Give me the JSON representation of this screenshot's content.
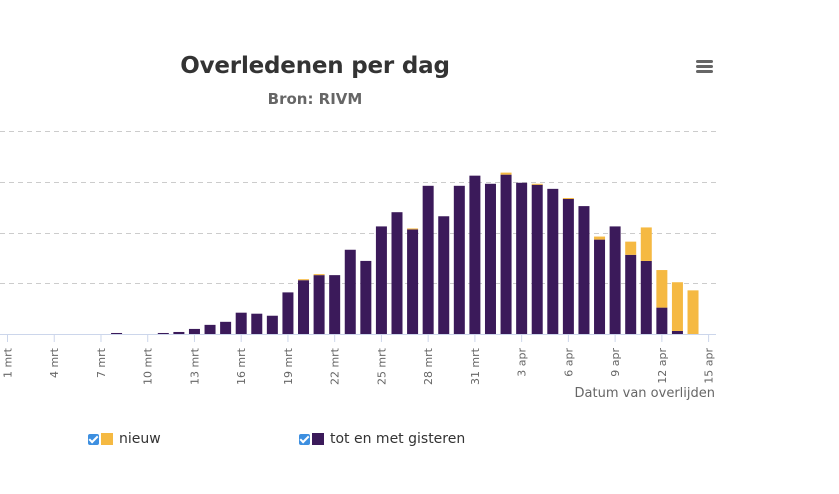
{
  "title": "Overledenen per dag",
  "subtitle": "Bron: RIVM",
  "menu_icon": "hamburger-menu-icon",
  "x_axis_title": "Datum van overlijden",
  "colors": {
    "nieuw": "#f5b942",
    "tot_en_met_gisteren": "#3b1a5a",
    "grid": "#cccccc",
    "axis": "#ccd6eb",
    "tick_label": "#666666",
    "checkbox": "#3d8fe0"
  },
  "legend": [
    {
      "label": "nieuw",
      "color": "#f5b942"
    },
    {
      "label": "tot en met gisteren",
      "color": "#3b1a5a"
    }
  ],
  "chart_data": {
    "type": "bar",
    "stacked": true,
    "xlabel": "Datum van overlijden",
    "ylabel": "",
    "ylim": [
      0,
      200
    ],
    "grid": true,
    "legend_position": "bottom",
    "x_tick_labels": [
      "1 mrt",
      "4 mrt",
      "7 mrt",
      "10 mrt",
      "13 mrt",
      "16 mrt",
      "19 mrt",
      "22 mrt",
      "25 mrt",
      "28 mrt",
      "31 mrt",
      "3 apr",
      "6 apr",
      "9 apr",
      "12 apr",
      "15 apr"
    ],
    "categories": [
      "1 mrt",
      "2 mrt",
      "3 mrt",
      "4 mrt",
      "5 mrt",
      "6 mrt",
      "7 mrt",
      "8 mrt",
      "9 mrt",
      "10 mrt",
      "11 mrt",
      "12 mrt",
      "13 mrt",
      "14 mrt",
      "15 mrt",
      "16 mrt",
      "17 mrt",
      "18 mrt",
      "19 mrt",
      "20 mrt",
      "21 mrt",
      "22 mrt",
      "23 mrt",
      "24 mrt",
      "25 mrt",
      "26 mrt",
      "27 mrt",
      "28 mrt",
      "29 mrt",
      "30 mrt",
      "31 mrt",
      "1 apr",
      "2 apr",
      "3 apr",
      "4 apr",
      "5 apr",
      "6 apr",
      "7 apr",
      "8 apr",
      "9 apr",
      "10 apr",
      "11 apr",
      "12 apr",
      "13 apr",
      "14 apr"
    ],
    "series": [
      {
        "name": "tot en met gisteren",
        "values": [
          0,
          0,
          0,
          0,
          0,
          0,
          0,
          1,
          0,
          0,
          1,
          2,
          5,
          9,
          12,
          21,
          20,
          18,
          41,
          53,
          58,
          58,
          83,
          72,
          106,
          120,
          103,
          146,
          116,
          146,
          156,
          148,
          157,
          149,
          147,
          143,
          133,
          126,
          93,
          106,
          78,
          72,
          26,
          3,
          0
        ],
        "color": "#3b1a5a"
      },
      {
        "name": "nieuw",
        "values": [
          0,
          0,
          0,
          0,
          0,
          0,
          0,
          0,
          0,
          0,
          0,
          0,
          0,
          0,
          0,
          0,
          0,
          0,
          0,
          1,
          1,
          0,
          0,
          0,
          0,
          0,
          1,
          0,
          0,
          0,
          0,
          0,
          2,
          0,
          1,
          0,
          1,
          0,
          3,
          0,
          13,
          33,
          37,
          48,
          43
        ],
        "color": "#f5b942"
      }
    ]
  }
}
